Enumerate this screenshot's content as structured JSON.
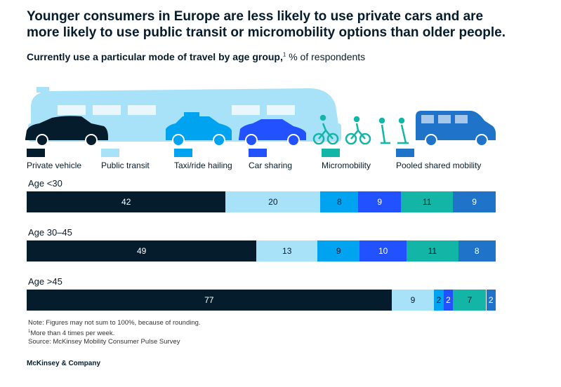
{
  "header": {
    "title": "Younger consumers in Europe are less likely to use private cars and are more likely to use public transit or micromobility options than older people.",
    "subtitle_bold": "Currently use a particular mode of travel by age group,",
    "subtitle_sup": "1",
    "subtitle_rest": " % of respondents"
  },
  "colors": {
    "private_vehicle": "#051c2c",
    "public_transit": "#a8e2f8",
    "taxi": "#00a3f0",
    "car_sharing": "#2251ff",
    "micromobility": "#13b6a6",
    "pooled": "#1f73c9"
  },
  "chart_data": {
    "type": "bar",
    "orientation": "horizontal-stacked",
    "categories": [
      "Age <30",
      "Age 30–45",
      "Age >45"
    ],
    "series": [
      {
        "name": "Private vehicle",
        "values": [
          42,
          49,
          77
        ],
        "labels": [
          "42",
          "49",
          "77"
        ]
      },
      {
        "name": "Public transit",
        "values": [
          20,
          13,
          9
        ],
        "labels": [
          "20",
          "13",
          "9"
        ]
      },
      {
        "name": "Taxi/ride hailing",
        "values": [
          8,
          9,
          2
        ],
        "labels": [
          "8",
          "9",
          "2"
        ]
      },
      {
        "name": "Car sharing",
        "values": [
          9,
          10,
          2
        ],
        "labels": [
          "9",
          "10",
          "2"
        ]
      },
      {
        "name": "Micromobility",
        "values": [
          11,
          11,
          7
        ],
        "labels": [
          "11",
          "11",
          "7"
        ]
      },
      {
        "name": "Pooled shared mobility",
        "values": [
          9,
          8,
          2
        ],
        "labels": [
          "9",
          "8",
          "2"
        ]
      }
    ],
    "legend_placement": "top",
    "grid": false
  },
  "footer": {
    "note": "Note: Figures may not sum to 100%, because of rounding.",
    "footnote_marker": "1",
    "footnote_text": "More than 4 times per week.",
    "source": "Source: McKinsey Mobility Consumer Pulse Survey",
    "brand": "McKinsey & Company"
  }
}
